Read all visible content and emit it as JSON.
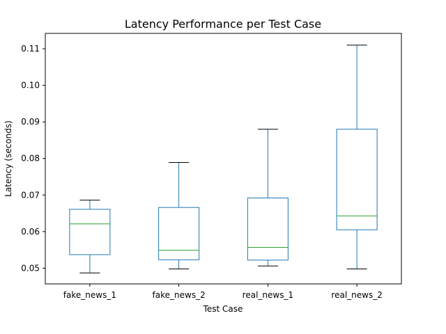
{
  "chart_data": {
    "type": "box",
    "title": "Latency Performance per Test Case",
    "xlabel": "Test Case",
    "ylabel": "Latency (seconds)",
    "ylim": [
      0.0457,
      0.1142
    ],
    "yticks": [
      0.05,
      0.06,
      0.07,
      0.08,
      0.09,
      0.1,
      0.11
    ],
    "ytick_labels": [
      "0.05",
      "0.06",
      "0.07",
      "0.08",
      "0.09",
      "0.10",
      "0.11"
    ],
    "categories": [
      "fake_news_1",
      "fake_news_2",
      "real_news_1",
      "real_news_2"
    ],
    "boxes": [
      {
        "category": "fake_news_1",
        "whisker_low": 0.0487,
        "q1": 0.0537,
        "median": 0.0621,
        "q3": 0.0661,
        "whisker_high": 0.0686
      },
      {
        "category": "fake_news_2",
        "whisker_low": 0.0498,
        "q1": 0.0523,
        "median": 0.0549,
        "q3": 0.0666,
        "whisker_high": 0.0789
      },
      {
        "category": "real_news_1",
        "whisker_low": 0.0506,
        "q1": 0.0522,
        "median": 0.0557,
        "q3": 0.0692,
        "whisker_high": 0.088
      },
      {
        "category": "real_news_2",
        "whisker_low": 0.0498,
        "q1": 0.0605,
        "median": 0.0643,
        "q3": 0.088,
        "whisker_high": 0.111
      }
    ],
    "grid": false,
    "colors": {
      "box": "#1f77b4",
      "median": "#2ca02c",
      "cap": "#000000",
      "axis": "#000000"
    }
  }
}
